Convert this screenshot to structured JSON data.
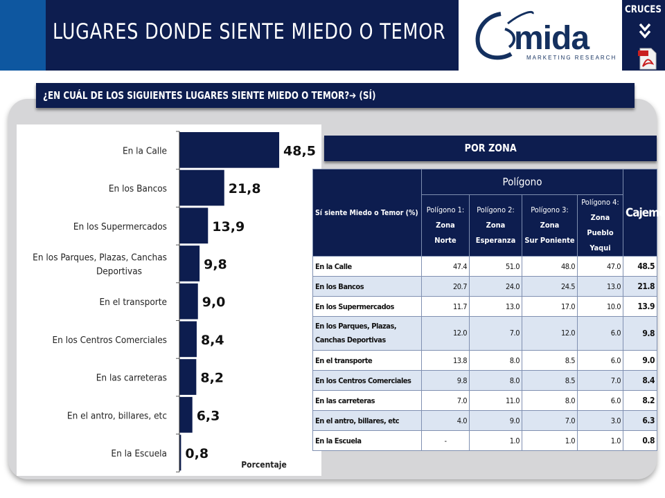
{
  "header": {
    "title": "LUGARES DONDE SIENTE MIEDO O TEMOR",
    "logo_name": "mida",
    "logo_sub": "MARKETING RESEARCH",
    "cruces_label": "CRUCES"
  },
  "question": "¿EN CUÁL DE LOS SIGUIENTES LUGARES SIENTE MIEDO O TEMOR?➔ (SÍ)",
  "zona_title": "POR ZONA",
  "colors": {
    "navy": "#0d1d4f",
    "accent_blue": "#0e57a0",
    "row_alt": "#dce5f2",
    "panel_gray": "#d6d6d8"
  },
  "chart_data": {
    "type": "bar",
    "orientation": "horizontal",
    "categories": [
      "En la Calle",
      "En los Bancos",
      "En los Supermercados",
      "En los Parques, Plazas, Canchas Deportivas",
      "En el transporte",
      "En los Centros Comerciales",
      "En las carreteras",
      "En el antro, billares, etc",
      "En la Escuela"
    ],
    "values": [
      48.5,
      21.8,
      13.9,
      9.8,
      9.0,
      8.4,
      8.2,
      6.3,
      0.8
    ],
    "value_labels": [
      "48,5",
      "21,8",
      "13,9",
      "9,8",
      "9,0",
      "8,4",
      "8,2",
      "6,3",
      "0,8"
    ],
    "xlabel": "Porcentaje",
    "xlim": [
      0,
      50
    ],
    "bar_color": "#0d1d4f"
  },
  "table": {
    "corner_header": "Sí siente Miedo o Temor (%)",
    "group_header": "Polígono",
    "columns": [
      {
        "prefix": "Polígono 1:",
        "bold": "Zona",
        "line2": "Norte"
      },
      {
        "prefix": "Polígono 2:",
        "bold": "Zona",
        "line2": "Esperanza"
      },
      {
        "prefix": "Polígono 3:",
        "bold": "Zona",
        "line2": "Sur Poniente"
      },
      {
        "prefix": "Polígono 4:",
        "bold": "Zona",
        "line2": "Pueblo Yaqui"
      }
    ],
    "total_header": "Cajeme",
    "rows": [
      {
        "label": "En la Calle",
        "values": [
          "47.4",
          "51.0",
          "48.0",
          "47.0"
        ],
        "total": "48.5"
      },
      {
        "label": "En los Bancos",
        "values": [
          "20.7",
          "24.0",
          "24.5",
          "13.0"
        ],
        "total": "21.8"
      },
      {
        "label": "En los Supermercados",
        "values": [
          "11.7",
          "13.0",
          "17.0",
          "10.0"
        ],
        "total": "13.9"
      },
      {
        "label": "En los Parques, Plazas, Canchas Deportivas",
        "values": [
          "12.0",
          "7.0",
          "12.0",
          "6.0"
        ],
        "total": "9.8"
      },
      {
        "label": "En el transporte",
        "values": [
          "13.8",
          "8.0",
          "8.5",
          "6.0"
        ],
        "total": "9.0"
      },
      {
        "label": "En los Centros Comerciales",
        "values": [
          "9.8",
          "8.0",
          "8.5",
          "7.0"
        ],
        "total": "8.4"
      },
      {
        "label": "En las carreteras",
        "values": [
          "7.0",
          "11.0",
          "8.0",
          "6.0"
        ],
        "total": "8.2"
      },
      {
        "label": "En el antro, billares, etc",
        "values": [
          "4.0",
          "9.0",
          "7.0",
          "3.0"
        ],
        "total": "6.3"
      },
      {
        "label": "En la Escuela",
        "values": [
          "-",
          "1.0",
          "1.0",
          "1.0"
        ],
        "total": "0.8"
      }
    ]
  }
}
